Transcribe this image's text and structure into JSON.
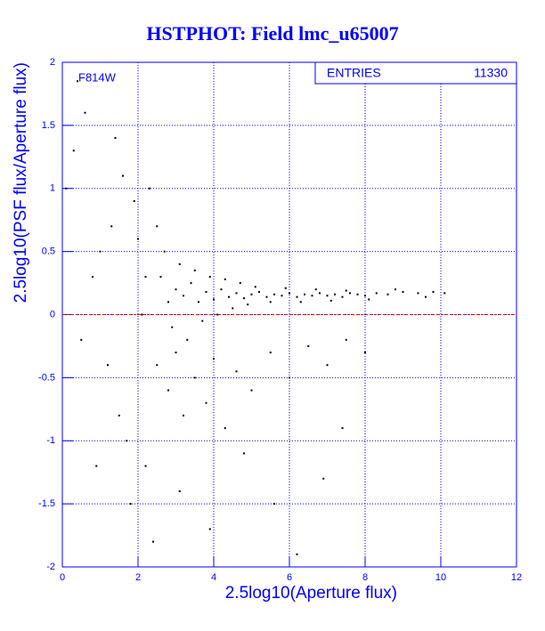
{
  "chart_data": {
    "type": "scatter",
    "title": "HSTPHOT: Field lmc_u65007",
    "xlabel": "2.5log10(Aperture flux)",
    "ylabel": "2.5log10(PSF flux/Aperture flux)",
    "annotation": "F814W",
    "stats": {
      "label": "ENTRIES",
      "value": 11330
    },
    "color": "#000000",
    "axis_color": "#0000ff",
    "grid": true,
    "reference_line": 0,
    "reference_color": "#ff0000",
    "xlim": [
      0,
      12
    ],
    "ylim": [
      -2,
      2
    ],
    "xticks": [
      0,
      2,
      4,
      6,
      8,
      10,
      12
    ],
    "yticks": [
      -2,
      -1.5,
      -1,
      -0.5,
      0,
      0.5,
      1,
      1.5,
      2
    ],
    "x": [
      2.6,
      2.8,
      3.0,
      3.2,
      3.4,
      3.6,
      3.8,
      4.0,
      4.2,
      4.4,
      4.6,
      4.8,
      5.0,
      5.2,
      5.4,
      5.6,
      5.8,
      6.0,
      6.2,
      6.4,
      6.6,
      6.8,
      7.0,
      7.2,
      7.4,
      7.6,
      7.8,
      8.0,
      8.3,
      8.6,
      9.0,
      9.4,
      9.8,
      10.1,
      2.7,
      2.9,
      3.1,
      3.3,
      3.5,
      3.7,
      3.9,
      4.1,
      4.3,
      4.5,
      4.7,
      4.9,
      5.1,
      5.5,
      5.9,
      6.3,
      6.7,
      7.1,
      7.5,
      8.1,
      8.8,
      9.6,
      2.5,
      2.8,
      3.0,
      3.2,
      3.5,
      3.8,
      4.0,
      4.3,
      4.6,
      5.0,
      5.5,
      6.0,
      6.5,
      7.0,
      7.5,
      8.0,
      2.2,
      1.8,
      2.4,
      3.1,
      3.9,
      4.8,
      5.6,
      6.2,
      6.9,
      7.4,
      1.5,
      1.2,
      0.5,
      0.8,
      1.0,
      1.3,
      1.6,
      1.9,
      2.0,
      2.2,
      0.3,
      0.6,
      0.4,
      1.4,
      0.1,
      2.1,
      1.7,
      0.9,
      2.3,
      2.5
    ],
    "values": [
      0.3,
      0.1,
      0.2,
      0.15,
      0.25,
      0.1,
      0.18,
      0.12,
      0.2,
      0.14,
      0.17,
      0.13,
      0.16,
      0.18,
      0.14,
      0.16,
      0.15,
      0.17,
      0.14,
      0.16,
      0.15,
      0.17,
      0.15,
      0.16,
      0.14,
      0.17,
      0.16,
      0.15,
      0.17,
      0.16,
      0.18,
      0.17,
      0.18,
      0.17,
      0.5,
      -0.1,
      0.4,
      -0.2,
      0.35,
      -0.05,
      0.3,
      0.0,
      0.28,
      0.05,
      0.25,
      0.08,
      0.22,
      0.1,
      0.21,
      0.1,
      0.2,
      0.11,
      0.19,
      0.12,
      0.2,
      0.14,
      -0.4,
      -0.6,
      -0.3,
      -0.8,
      -0.5,
      -0.7,
      -0.35,
      -0.9,
      -0.45,
      -0.6,
      -0.3,
      -0.5,
      -0.25,
      -0.4,
      -0.2,
      -0.3,
      -1.2,
      -1.5,
      -1.8,
      -1.4,
      -1.7,
      -1.1,
      -1.5,
      -1.9,
      -1.3,
      -0.9,
      -0.8,
      -0.4,
      -0.2,
      0.3,
      0.5,
      0.7,
      1.1,
      0.9,
      0.6,
      0.3,
      1.3,
      1.6,
      1.85,
      1.4,
      1.0,
      0.0,
      -1.0,
      -1.2,
      1.0,
      0.7
    ]
  }
}
